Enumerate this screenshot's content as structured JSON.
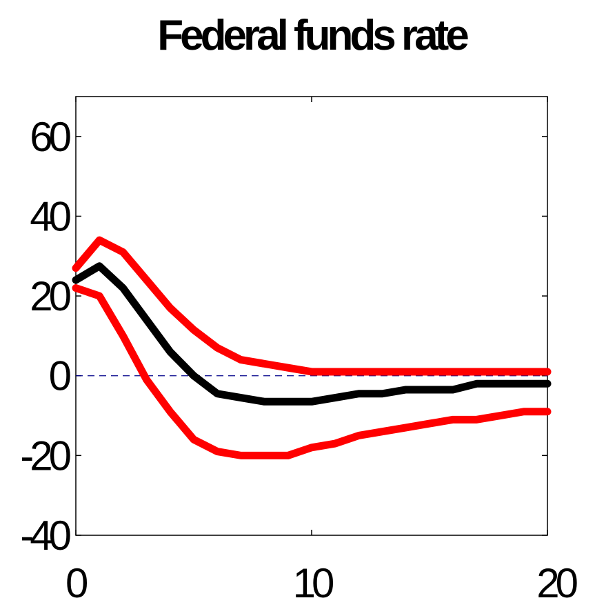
{
  "chart_data": {
    "type": "line",
    "title": "Federal funds rate",
    "xlabel": "",
    "ylabel": "",
    "xlim": [
      0,
      20
    ],
    "ylim": [
      -40,
      70
    ],
    "xticks": [
      0,
      10,
      20
    ],
    "yticks": [
      -40,
      -20,
      0,
      20,
      40,
      60
    ],
    "x": [
      0,
      1,
      2,
      3,
      4,
      5,
      6,
      7,
      8,
      9,
      10,
      11,
      12,
      13,
      14,
      15,
      16,
      17,
      18,
      19,
      20
    ],
    "series": [
      {
        "color": "#ff0000",
        "role": "upper",
        "values": [
          27,
          34,
          31,
          24,
          17,
          11.5,
          7,
          4,
          3,
          2,
          1,
          1,
          1,
          1,
          1,
          1,
          1,
          1,
          1,
          1,
          1
        ]
      },
      {
        "color": "#000000",
        "role": "median",
        "values": [
          24,
          27.5,
          22,
          14,
          6,
          0,
          -4.5,
          -5.5,
          -6.5,
          -6.5,
          -6.5,
          -5.5,
          -4.5,
          -4.5,
          -3.5,
          -3.5,
          -3.5,
          -2,
          -2,
          -2,
          -2
        ]
      },
      {
        "color": "#ff0000",
        "role": "lower",
        "values": [
          22,
          20,
          10,
          -1,
          -9,
          -16,
          -19,
          -20,
          -20,
          -20,
          -18,
          -17,
          -15,
          -14,
          -13,
          -12,
          -11,
          -11,
          -10,
          -9,
          -9
        ]
      }
    ],
    "zero_line": {
      "y": 0,
      "color": "#00008b",
      "style": "dashed"
    },
    "grid": false,
    "legend": "none"
  }
}
